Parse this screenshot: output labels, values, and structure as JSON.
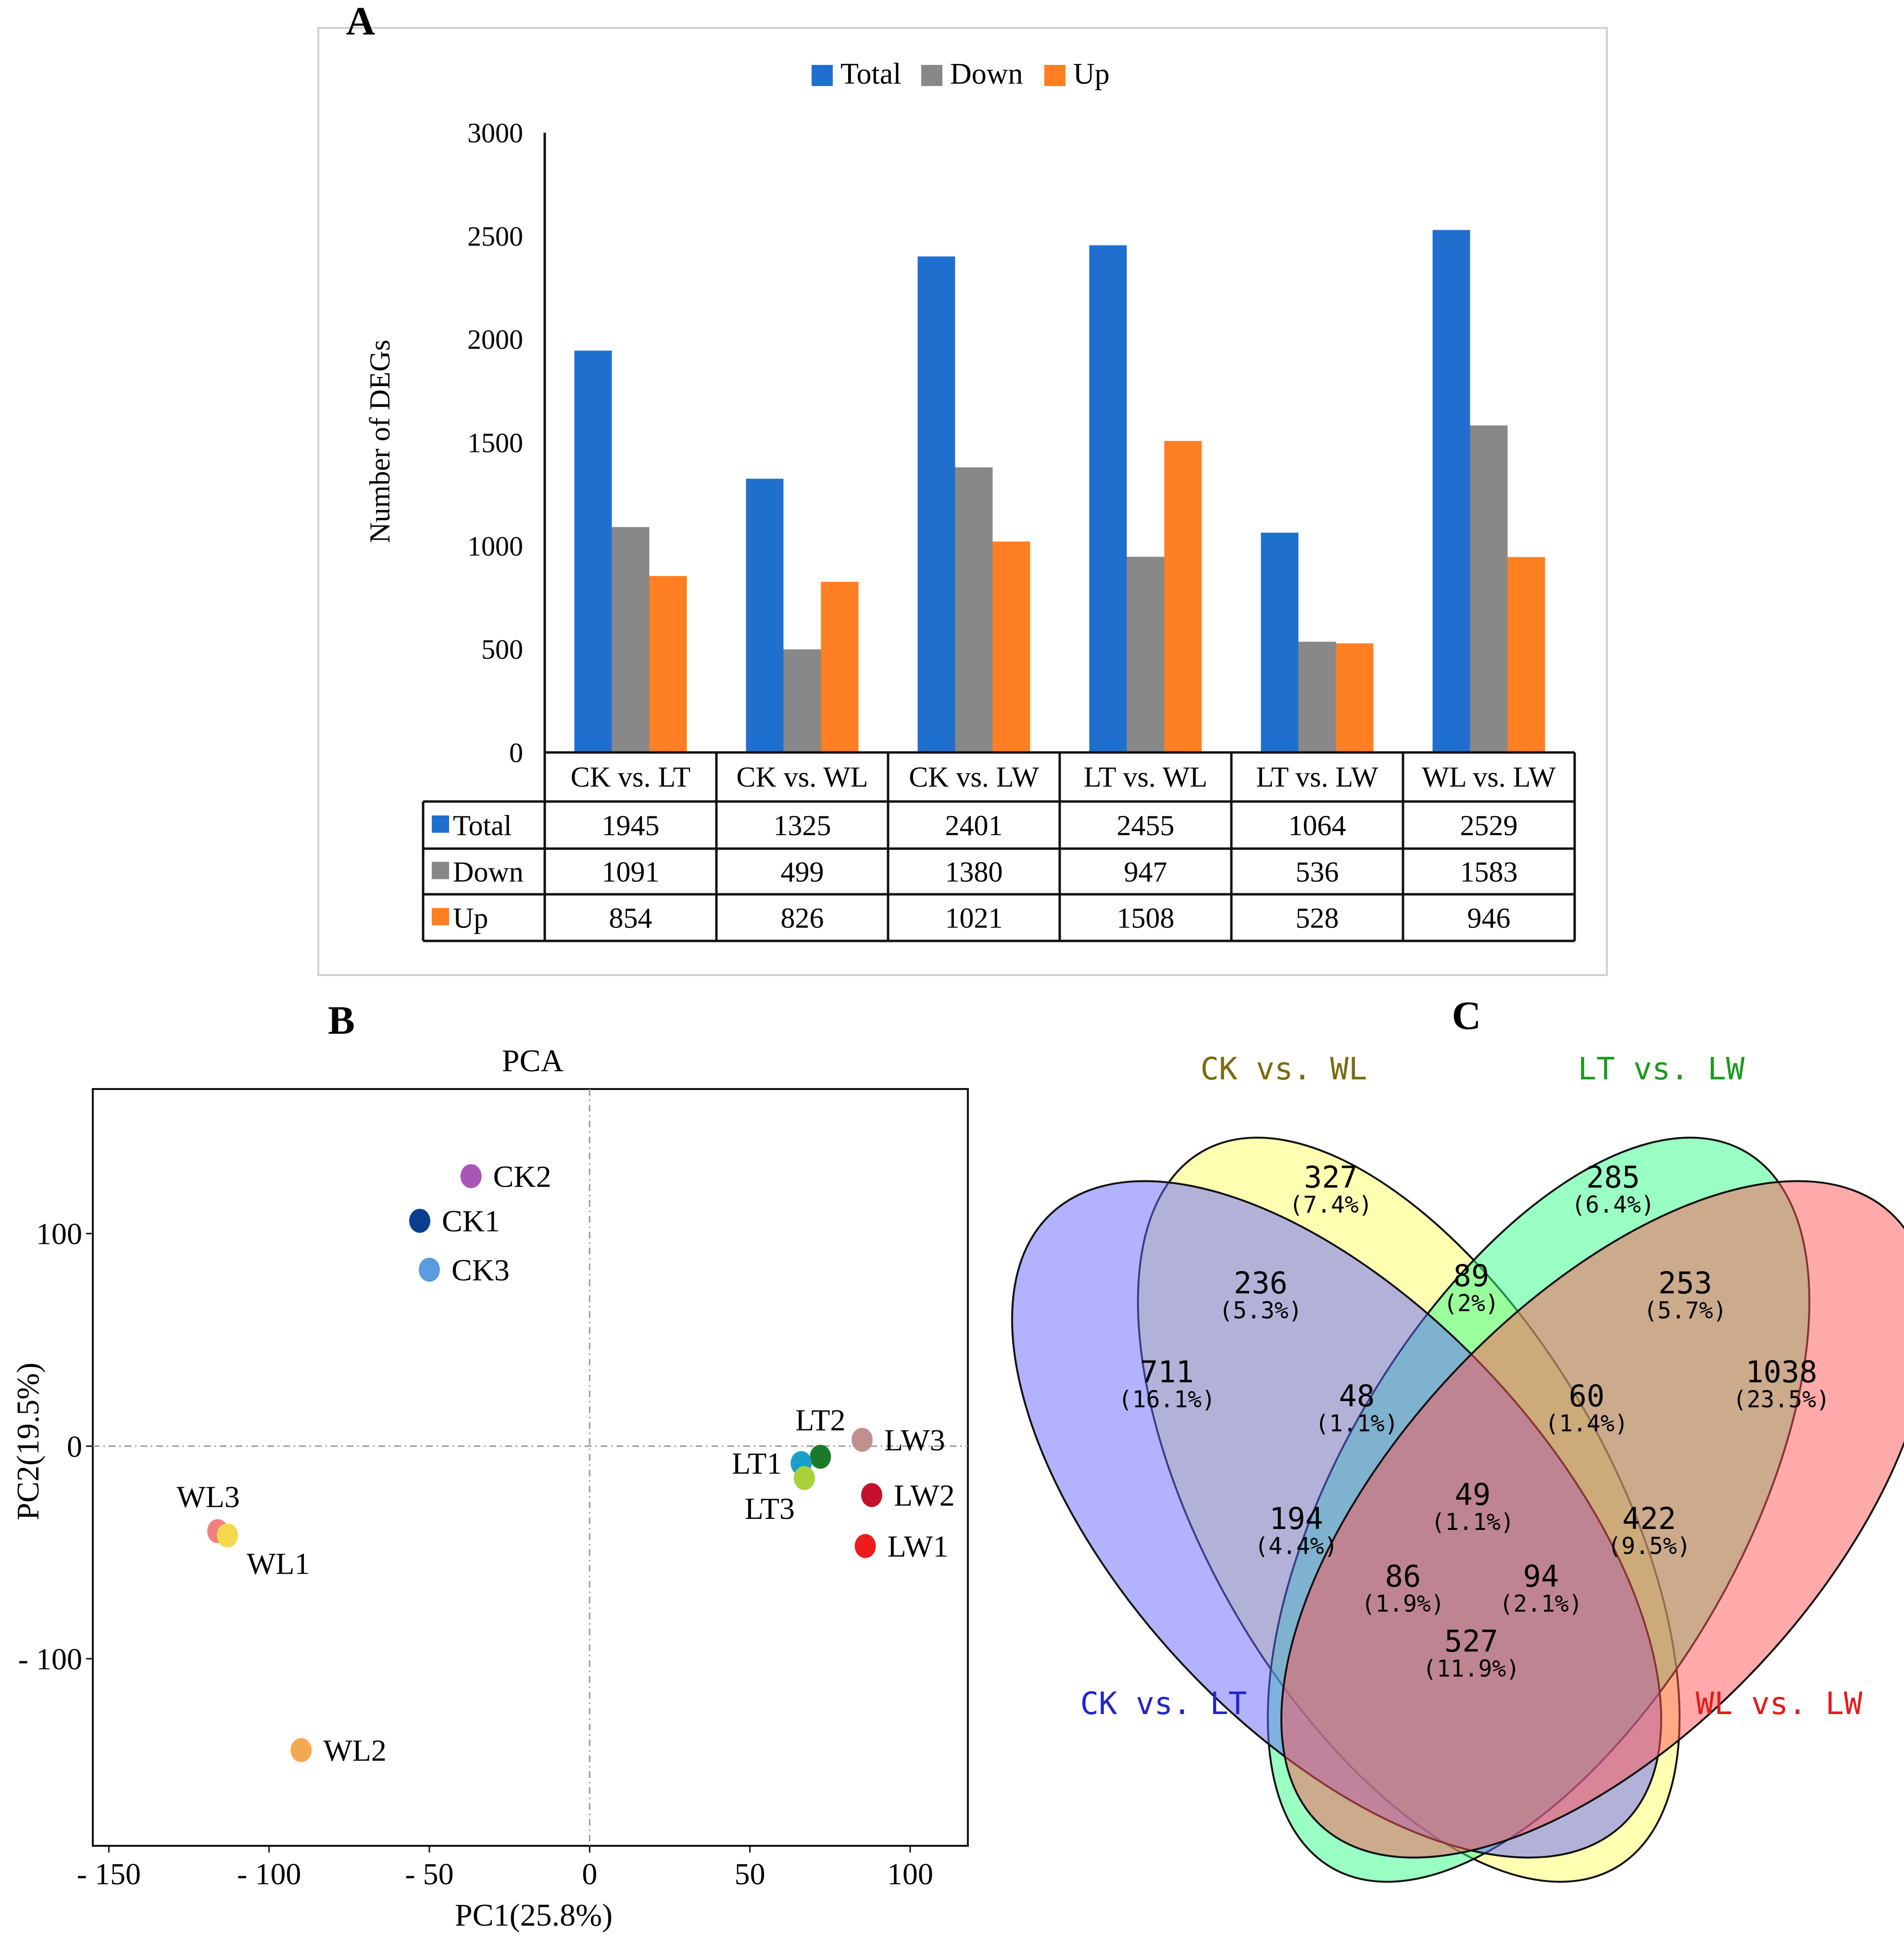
{
  "panels": {
    "a": {
      "letter": "A"
    },
    "b": {
      "letter": "B"
    },
    "c": {
      "letter": "C"
    }
  },
  "colors": {
    "total": "#1f6fcf",
    "down": "#888888",
    "up": "#ff7f22"
  },
  "chart_data": [
    {
      "type": "bar",
      "title": "",
      "legend": [
        "Total",
        "Down",
        "Up"
      ],
      "legend_position": "top",
      "ylabel": "Number of DEGs",
      "xlabel": "",
      "ylim": [
        0,
        3000
      ],
      "yticks": [
        0,
        500,
        1000,
        1500,
        2000,
        2500,
        3000
      ],
      "categories": [
        "CK vs. LT",
        "CK vs. WL",
        "CK vs. LW",
        "LT vs. WL",
        "LT vs. LW",
        "WL vs. LW"
      ],
      "series": [
        {
          "name": "Total",
          "values": [
            1945,
            1325,
            2401,
            2455,
            1064,
            2529
          ]
        },
        {
          "name": "Down",
          "values": [
            1091,
            499,
            1380,
            947,
            536,
            1583
          ]
        },
        {
          "name": "Up",
          "values": [
            854,
            826,
            1021,
            1508,
            528,
            946
          ]
        }
      ],
      "data_table": true
    },
    {
      "type": "scatter",
      "title": "PCA",
      "xlabel": "PC1(25.8%)",
      "ylabel": "PC2(19.5%)",
      "xlim": [
        -155,
        118
      ],
      "ylim": [
        -188,
        168
      ],
      "xticks": [
        {
          "value": -150,
          "label": "- 150"
        },
        {
          "value": -100,
          "label": "- 100"
        },
        {
          "value": -50,
          "label": "- 50"
        },
        {
          "value": 0,
          "label": "0"
        },
        {
          "value": 50,
          "label": "50"
        },
        {
          "value": 100,
          "label": "100"
        }
      ],
      "yticks": [
        {
          "value": 100,
          "label": "100"
        },
        {
          "value": 0,
          "label": "0"
        },
        {
          "value": -100,
          "label": "- 100"
        }
      ],
      "reference_lines": {
        "x": 0,
        "y": 0
      },
      "points": [
        {
          "label": "CK2",
          "x": -37,
          "y": 127,
          "color": "#a857b6",
          "label_side": "right"
        },
        {
          "label": "CK1",
          "x": -53,
          "y": 106,
          "color": "#0b3f8e",
          "label_side": "right"
        },
        {
          "label": "CK3",
          "x": -50,
          "y": 83,
          "color": "#5b9be0",
          "label_side": "right"
        },
        {
          "label": "LT2",
          "x": 72,
          "y": -5,
          "color": "#1a7a2a",
          "label_side": "above"
        },
        {
          "label": "LW3",
          "x": 85,
          "y": 3,
          "color": "#c09090",
          "label_side": "right"
        },
        {
          "label": "LT1",
          "x": 66,
          "y": -8,
          "color": "#1aa0c8",
          "label_side": "left"
        },
        {
          "label": "LT3",
          "x": 67,
          "y": -15,
          "color": "#a9d13a",
          "label_side": "below-left"
        },
        {
          "label": "LW2",
          "x": 88,
          "y": -23,
          "color": "#c4122e",
          "label_side": "right"
        },
        {
          "label": "LW1",
          "x": 86,
          "y": -47,
          "color": "#ee1c1c",
          "label_side": "right"
        },
        {
          "label": "WL3",
          "x": -116,
          "y": -40,
          "color": "#f28080",
          "label_side": "above-left"
        },
        {
          "label": "WL1",
          "x": -113,
          "y": -42,
          "color": "#f2d84a",
          "label_side": "below-right"
        },
        {
          "label": "WL2",
          "x": -90,
          "y": -143,
          "color": "#f4a951",
          "label_side": "right"
        }
      ]
    },
    {
      "type": "venn",
      "sets": [
        {
          "name": "CK vs. WL",
          "color": "#7a6a10"
        },
        {
          "name": "LT vs. LW",
          "color": "#1a9a1a"
        },
        {
          "name": "CK vs. LT",
          "color": "#2424c8"
        },
        {
          "name": "WL vs. LW",
          "color": "#e41a1a"
        }
      ],
      "regions": [
        {
          "sets": "CK vs. WL only",
          "count": "327",
          "pct": "(7.4%)"
        },
        {
          "sets": "LT vs. LW only",
          "count": "285",
          "pct": "(6.4%)"
        },
        {
          "sets": "CK vs. LT + CK vs. WL",
          "count": "236",
          "pct": "(5.3%)"
        },
        {
          "sets": "CK vs. WL + LT vs. LW",
          "count": "89",
          "pct": "(2%)"
        },
        {
          "sets": "LT vs. LW + WL vs. LW",
          "count": "253",
          "pct": "(5.7%)"
        },
        {
          "sets": "CK vs. LT only",
          "count": "711",
          "pct": "(16.1%)"
        },
        {
          "sets": "CK vs. LT + CK vs. WL + LT vs. LW",
          "count": "48",
          "pct": "(1.1%)"
        },
        {
          "sets": "CK vs. WL + LT vs. LW + WL vs. LW",
          "count": "60",
          "pct": "(1.4%)"
        },
        {
          "sets": "WL vs. LW only",
          "count": "1038",
          "pct": "(23.5%)"
        },
        {
          "sets": "CK vs. LT + LT vs. LW",
          "count": "194",
          "pct": "(4.4%)"
        },
        {
          "sets": "all four",
          "count": "49",
          "pct": "(1.1%)"
        },
        {
          "sets": "CK vs. WL + WL vs. LW",
          "count": "422",
          "pct": "(9.5%)"
        },
        {
          "sets": "CK vs. LT + LT vs. LW + WL vs. LW",
          "count": "86",
          "pct": "(1.9%)"
        },
        {
          "sets": "CK vs. LT + CK vs. WL + WL vs. LW",
          "count": "94",
          "pct": "(2.1%)"
        },
        {
          "sets": "CK vs. LT + WL vs. LW",
          "count": "527",
          "pct": "(11.9%)"
        }
      ]
    }
  ]
}
